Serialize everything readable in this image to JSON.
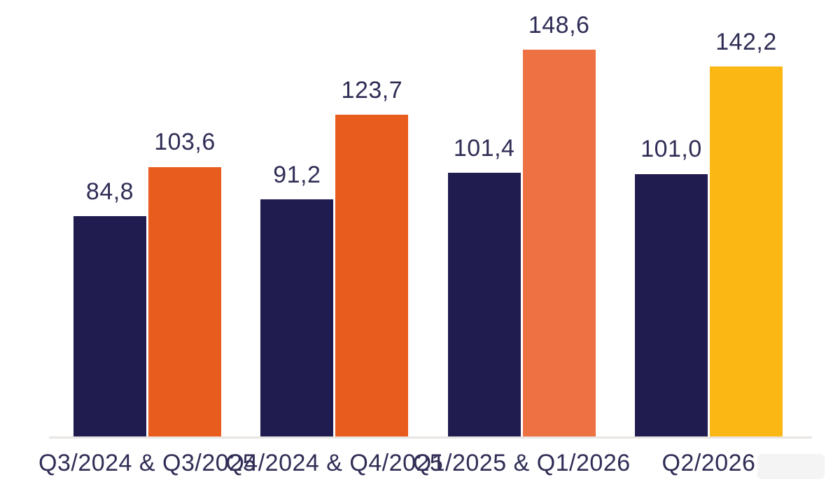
{
  "chart_data": {
    "type": "bar",
    "categories": [
      "Q3/2024 & Q3/2025",
      "Q4/2024 & Q4/2025",
      "Q1/2025 & Q1/2026",
      "Q2/2026"
    ],
    "series": [
      {
        "name": "series-1",
        "values": [
          84.8,
          91.2,
          101.4,
          101.0
        ],
        "bar_colors": [
          "#201c50",
          "#201c50",
          "#201c50",
          "#201c50"
        ]
      },
      {
        "name": "series-2",
        "values": [
          103.6,
          123.7,
          148.6,
          142.2
        ],
        "bar_colors": [
          "#e85c1e",
          "#e85c1e",
          "#ee7143",
          "#fbb713"
        ]
      }
    ],
    "display_values": {
      "series1": [
        "84,8",
        "91,2",
        "101,4",
        "101,0"
      ],
      "series2": [
        "103,6",
        "123,7",
        "148,6",
        "142,2"
      ]
    },
    "decimal_separator": ",",
    "ylim": [
      0,
      167.7
    ],
    "grid": false,
    "legend": "none",
    "value_label_color": "#2f2d55",
    "category_label_color": "#2f2d55",
    "axis_line_color": "#e9e5e2",
    "background_color": "#ffffff"
  }
}
